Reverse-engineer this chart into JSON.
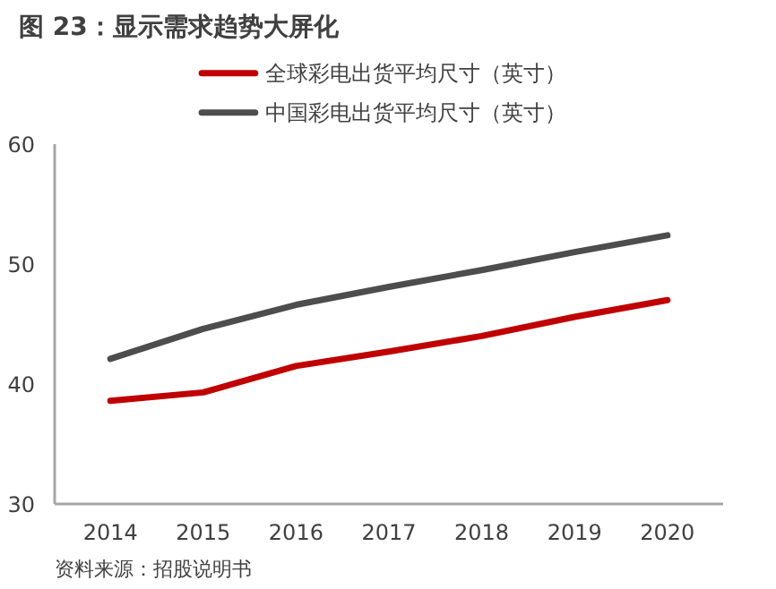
{
  "chart_data": {
    "type": "line",
    "title": "图 23：显示需求趋势大屏化",
    "categories": [
      "2014",
      "2015",
      "2016",
      "2017",
      "2018",
      "2019",
      "2020"
    ],
    "series": [
      {
        "name": "全球彩电出货平均尺寸（英寸）",
        "color": "#c00000",
        "values": [
          38.6,
          39.3,
          41.5,
          42.7,
          44.0,
          45.6,
          47.0
        ]
      },
      {
        "name": "中国彩电出货平均尺寸（英寸）",
        "color": "#4d4d4d",
        "values": [
          42.1,
          44.6,
          46.6,
          48.1,
          49.5,
          51.0,
          52.4
        ]
      }
    ],
    "ylim": [
      30,
      60
    ],
    "yticks": [
      30,
      40,
      50,
      60
    ],
    "grid": false,
    "legend": "top",
    "marker": "none",
    "line_style": "solid",
    "annotations": [
      "资料来源：招股说明书"
    ]
  }
}
